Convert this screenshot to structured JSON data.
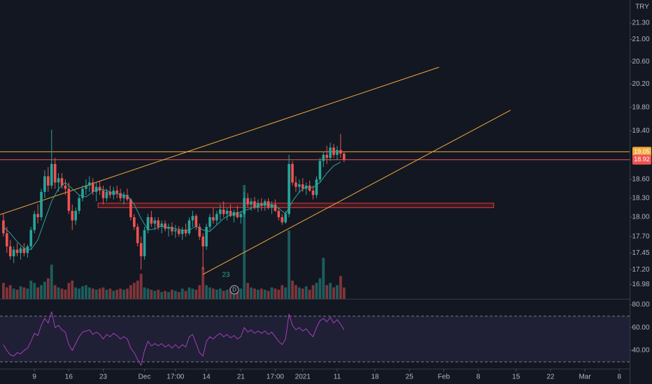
{
  "chart_data": {
    "type": "candlestick",
    "currency": "TRY",
    "log_scale": true,
    "xlim": [
      -1,
      182
    ],
    "ylim": [
      16.77,
      21.73
    ],
    "yticks": [
      {
        "value": 21.3,
        "label": "21.30"
      },
      {
        "value": 21,
        "label": "21.00"
      },
      {
        "value": 20.6,
        "label": "20.60"
      },
      {
        "value": 20.2,
        "label": "20.20"
      },
      {
        "value": 19.8,
        "label": "19.80"
      },
      {
        "value": 19.4,
        "label": "19.40"
      },
      {
        "value": 18.6,
        "label": "18.60"
      },
      {
        "value": 18.3,
        "label": "18.30"
      },
      {
        "value": 18,
        "label": "18.00"
      },
      {
        "value": 17.7,
        "label": "17.70"
      },
      {
        "value": 17.45,
        "label": "17.45"
      },
      {
        "value": 17.2,
        "label": "17.20"
      },
      {
        "value": 16.98,
        "label": "16.98"
      }
    ],
    "xticks": [
      {
        "value": 9,
        "label": "9"
      },
      {
        "value": 19,
        "label": "16"
      },
      {
        "value": 29,
        "label": "23"
      },
      {
        "value": 41,
        "label": "Dec"
      },
      {
        "value": 50,
        "label": "17:00"
      },
      {
        "value": 59,
        "label": "14"
      },
      {
        "value": 69,
        "label": "21"
      },
      {
        "value": 79,
        "label": "17:00"
      },
      {
        "value": 87,
        "label": "2021"
      },
      {
        "value": 97,
        "label": "11"
      },
      {
        "value": 108,
        "label": "18"
      },
      {
        "value": 118,
        "label": "25"
      },
      {
        "value": 128,
        "label": "Feb"
      },
      {
        "value": 138,
        "label": "8"
      },
      {
        "value": 149,
        "label": "15"
      },
      {
        "value": 159,
        "label": "22"
      },
      {
        "value": 169,
        "label": "Mar"
      },
      {
        "value": 179,
        "label": "8"
      }
    ],
    "up_color": "#26a69a",
    "down_color": "#ef5350",
    "candles": [
      [
        17.95,
        18.05,
        17.7,
        17.75
      ],
      [
        17.75,
        17.85,
        17.45,
        17.55
      ],
      [
        17.55,
        17.65,
        17.35,
        17.4
      ],
      [
        17.4,
        17.55,
        17.3,
        17.5
      ],
      [
        17.5,
        17.6,
        17.4,
        17.45
      ],
      [
        17.45,
        17.55,
        17.35,
        17.52
      ],
      [
        17.52,
        17.6,
        17.4,
        17.45
      ],
      [
        17.45,
        17.58,
        17.38,
        17.55
      ],
      [
        17.55,
        17.85,
        17.5,
        17.8
      ],
      [
        17.8,
        18.1,
        17.75,
        18.05
      ],
      [
        18.05,
        18.2,
        17.9,
        18
      ],
      [
        18,
        18.45,
        17.95,
        18.4
      ],
      [
        18.4,
        18.75,
        18.3,
        18.65
      ],
      [
        18.65,
        18.8,
        18.4,
        18.5
      ],
      [
        18.5,
        19.42,
        18.45,
        18.85
      ],
      [
        18.85,
        18.95,
        18.45,
        18.55
      ],
      [
        18.55,
        18.7,
        18.4,
        18.62
      ],
      [
        18.62,
        18.7,
        18.45,
        18.5
      ],
      [
        18.5,
        18.6,
        18.35,
        18.45
      ],
      [
        18.45,
        18.55,
        18.05,
        18.1
      ],
      [
        18.1,
        18.2,
        17.8,
        17.95
      ],
      [
        17.95,
        18.15,
        17.88,
        18.1
      ],
      [
        18.1,
        18.35,
        18.05,
        18.3
      ],
      [
        18.3,
        18.5,
        18.25,
        18.45
      ],
      [
        18.45,
        18.6,
        18.35,
        18.5
      ],
      [
        18.5,
        18.65,
        18.4,
        18.55
      ],
      [
        18.55,
        18.62,
        18.35,
        18.4
      ],
      [
        18.4,
        18.55,
        18.25,
        18.48
      ],
      [
        18.48,
        18.58,
        18.35,
        18.42
      ],
      [
        18.42,
        18.5,
        18.2,
        18.3
      ],
      [
        18.3,
        18.45,
        18.25,
        18.4
      ],
      [
        18.4,
        18.5,
        18.3,
        18.35
      ],
      [
        18.35,
        18.48,
        18.28,
        18.42
      ],
      [
        18.42,
        18.5,
        18.3,
        18.38
      ],
      [
        18.38,
        18.45,
        18.25,
        18.3
      ],
      [
        18.3,
        18.4,
        18.2,
        18.35
      ],
      [
        18.35,
        18.45,
        18.25,
        18.28
      ],
      [
        18.28,
        18.3,
        17.95,
        18
      ],
      [
        18,
        18.05,
        17.8,
        17.85
      ],
      [
        17.85,
        17.9,
        17.55,
        17.6
      ],
      [
        17.6,
        17.7,
        17.2,
        17.4
      ],
      [
        17.4,
        17.85,
        17.35,
        17.8
      ],
      [
        17.8,
        18.05,
        17.75,
        18
      ],
      [
        18,
        18.1,
        17.85,
        17.9
      ],
      [
        17.9,
        18,
        17.8,
        17.95
      ],
      [
        17.95,
        18,
        17.8,
        17.85
      ],
      [
        17.85,
        17.95,
        17.75,
        17.9
      ],
      [
        17.9,
        17.95,
        17.78,
        17.82
      ],
      [
        17.82,
        17.9,
        17.7,
        17.85
      ],
      [
        17.85,
        17.92,
        17.72,
        17.78
      ],
      [
        17.78,
        17.88,
        17.68,
        17.8
      ],
      [
        17.8,
        17.86,
        17.7,
        17.74
      ],
      [
        17.74,
        17.85,
        17.65,
        17.8
      ],
      [
        17.8,
        17.9,
        17.7,
        17.75
      ],
      [
        17.75,
        18,
        17.72,
        17.95
      ],
      [
        17.95,
        18.1,
        17.85,
        18.02
      ],
      [
        18.02,
        18.05,
        17.8,
        17.85
      ],
      [
        17.85,
        17.9,
        17.65,
        17.7
      ],
      [
        17.7,
        17.75,
        17.2,
        17.55
      ],
      [
        17.55,
        17.9,
        17.5,
        17.85
      ],
      [
        17.85,
        18.05,
        17.8,
        18
      ],
      [
        18,
        18.15,
        17.9,
        17.95
      ],
      [
        17.95,
        18.1,
        17.88,
        18.05
      ],
      [
        18.05,
        18.2,
        17.95,
        18.12
      ],
      [
        18.12,
        18.25,
        18,
        18.05
      ],
      [
        18.05,
        18.15,
        17.95,
        18.1
      ],
      [
        18.1,
        18.2,
        18,
        18.02
      ],
      [
        18.02,
        18.12,
        17.92,
        18.08
      ],
      [
        18.08,
        18.18,
        17.98,
        18
      ],
      [
        18,
        18.1,
        17.9,
        18.05
      ],
      [
        18.05,
        18.4,
        18,
        18.3
      ],
      [
        18.3,
        18.38,
        18.15,
        18.2
      ],
      [
        18.2,
        18.3,
        18.1,
        18.25
      ],
      [
        18.25,
        18.32,
        18.12,
        18.15
      ],
      [
        18.15,
        18.28,
        18.08,
        18.22
      ],
      [
        18.22,
        18.3,
        18.1,
        18.18
      ],
      [
        18.18,
        18.28,
        18.1,
        18.25
      ],
      [
        18.25,
        18.3,
        18.12,
        18.15
      ],
      [
        18.15,
        18.25,
        18.05,
        18.2
      ],
      [
        18.2,
        18.28,
        18.08,
        18.1
      ],
      [
        18.1,
        18.15,
        17.95,
        18
      ],
      [
        18,
        18.05,
        17.88,
        17.92
      ],
      [
        17.92,
        18.1,
        17.9,
        18.05
      ],
      [
        18.05,
        19,
        18,
        18.85
      ],
      [
        18.85,
        18.9,
        18.5,
        18.55
      ],
      [
        18.55,
        18.65,
        18.4,
        18.48
      ],
      [
        18.48,
        18.6,
        18.38,
        18.52
      ],
      [
        18.52,
        18.62,
        18.4,
        18.45
      ],
      [
        18.45,
        18.55,
        18.35,
        18.5
      ],
      [
        18.5,
        18.58,
        18.4,
        18.42
      ],
      [
        18.42,
        18.5,
        18.28,
        18.35
      ],
      [
        18.35,
        18.65,
        18.3,
        18.6
      ],
      [
        18.6,
        18.95,
        18.55,
        18.9
      ],
      [
        18.9,
        19.05,
        18.8,
        19
      ],
      [
        19,
        19.15,
        18.85,
        18.95
      ],
      [
        18.95,
        19.2,
        18.9,
        19.12
      ],
      [
        19.12,
        19.18,
        18.95,
        19
      ],
      [
        19,
        19.15,
        18.92,
        19.08
      ],
      [
        19.08,
        19.35,
        18.95,
        19.02
      ],
      [
        19.02,
        19.05,
        18.88,
        18.92
      ]
    ],
    "volume": [
      14,
      10,
      12,
      9,
      8,
      11,
      10,
      9,
      16,
      14,
      10,
      12,
      15,
      18,
      30,
      12,
      10,
      9,
      8,
      14,
      16,
      10,
      9,
      11,
      12,
      10,
      9,
      8,
      9,
      10,
      8,
      9,
      7,
      8,
      9,
      8,
      9,
      12,
      14,
      16,
      22,
      10,
      9,
      8,
      7,
      8,
      6,
      7,
      6,
      8,
      7,
      6,
      9,
      7,
      10,
      9,
      8,
      12,
      28,
      12,
      10,
      9,
      8,
      9,
      7,
      8,
      9,
      7,
      8,
      9,
      100,
      14,
      10,
      9,
      8,
      9,
      8,
      7,
      10,
      9,
      8,
      12,
      10,
      60,
      16,
      12,
      10,
      9,
      11,
      8,
      12,
      14,
      18,
      36,
      12,
      14,
      10,
      12,
      20,
      10
    ],
    "ma": {
      "color": "#2aa39b",
      "x": [
        0,
        2,
        4,
        6,
        8,
        10,
        12,
        14,
        16,
        18,
        20,
        22,
        24,
        26,
        28,
        30,
        32,
        34,
        36,
        38,
        40,
        42,
        44,
        46,
        48,
        50,
        52,
        54,
        56,
        58,
        60,
        62,
        64,
        66,
        68,
        70,
        72,
        74,
        76,
        78,
        80,
        82,
        84,
        86,
        88,
        90,
        92,
        94,
        96,
        98
      ],
      "values": [
        17.85,
        17.75,
        17.62,
        17.52,
        17.5,
        17.65,
        17.95,
        18.25,
        18.45,
        18.55,
        18.45,
        18.35,
        18.32,
        18.4,
        18.45,
        18.42,
        18.38,
        18.36,
        18.34,
        18.2,
        17.98,
        17.8,
        17.82,
        17.86,
        17.84,
        17.82,
        17.8,
        17.8,
        17.86,
        17.8,
        17.78,
        17.88,
        17.98,
        18.04,
        18.06,
        18.1,
        18.14,
        18.18,
        18.2,
        18.19,
        18.14,
        18.05,
        18.25,
        18.4,
        18.48,
        18.47,
        18.55,
        18.7,
        18.82,
        18.88
      ]
    },
    "trend_lines": [
      {
        "color": "#f2a93b",
        "x": [
          -1,
          126.6
        ],
        "y": [
          18.04,
          20.5
        ]
      },
      {
        "color": "#f2a93b",
        "x": [
          58,
          147.4
        ],
        "y": [
          17.13,
          19.75
        ]
      }
    ],
    "levels": [
      {
        "value": 19.05,
        "label": "19.05",
        "color": "#f2a93b"
      },
      {
        "value": 18.92,
        "label": "18.92",
        "color": "#ef5350"
      }
    ],
    "zone": {
      "x": [
        27.5,
        142.5
      ],
      "y": [
        18.15,
        18.22
      ],
      "color": "#e53935"
    },
    "annotations": [
      "23",
      "D"
    ],
    "rsi": {
      "color": "#a53fb8",
      "ylim": [
        24,
        84
      ],
      "band": [
        30,
        70
      ],
      "yticks": [
        {
          "value": 80,
          "label": "80.00"
        },
        {
          "value": 60,
          "label": "60.00"
        },
        {
          "value": 40,
          "label": "40.00"
        }
      ],
      "values": [
        45,
        40,
        36,
        35,
        38,
        37,
        40,
        42,
        48,
        55,
        53,
        62,
        68,
        64,
        74,
        60,
        62,
        58,
        56,
        45,
        40,
        46,
        52,
        56,
        57,
        58,
        54,
        56,
        54,
        50,
        54,
        52,
        55,
        53,
        50,
        52,
        50,
        42,
        38,
        32,
        27,
        40,
        48,
        44,
        46,
        44,
        46,
        43,
        45,
        42,
        45,
        42,
        45,
        43,
        52,
        54,
        46,
        38,
        35,
        48,
        52,
        50,
        53,
        55,
        52,
        54,
        51,
        53,
        50,
        52,
        60,
        56,
        58,
        55,
        57,
        55,
        57,
        54,
        56,
        52,
        48,
        45,
        50,
        72,
        62,
        58,
        60,
        57,
        59,
        55,
        52,
        60,
        66,
        68,
        65,
        69,
        64,
        67,
        63,
        58
      ]
    }
  }
}
